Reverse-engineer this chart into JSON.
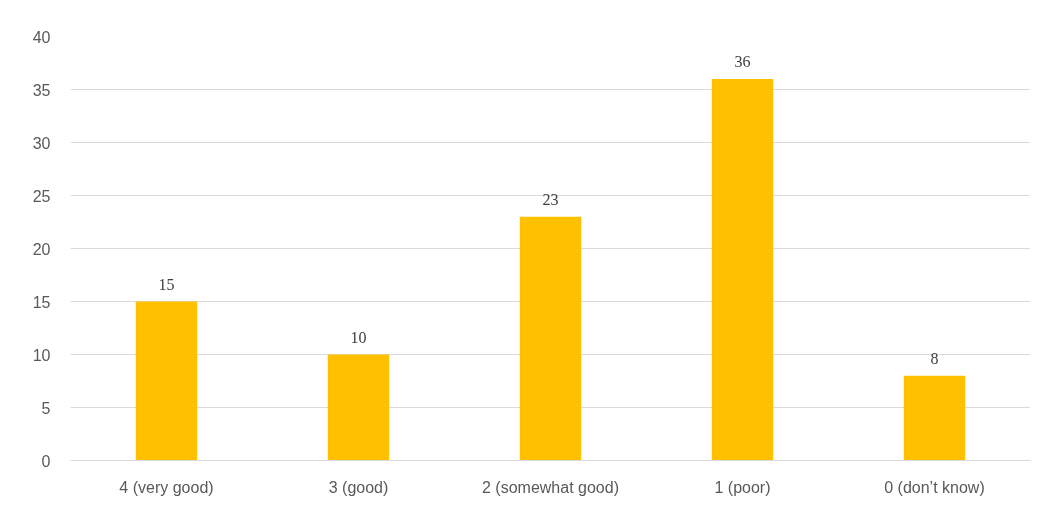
{
  "chart_data": {
    "type": "bar",
    "categories": [
      "4 (very good)",
      "3 (good)",
      "2 (somewhat good)",
      "1 (poor)",
      "0 (don’t know)"
    ],
    "values": [
      15,
      10,
      23,
      36,
      8
    ],
    "color": "#ffc000",
    "ylim": [
      0,
      40
    ],
    "yticks": [
      0,
      5,
      10,
      15,
      20,
      25,
      30,
      35,
      40
    ],
    "grid": "y",
    "data_labels": true
  }
}
